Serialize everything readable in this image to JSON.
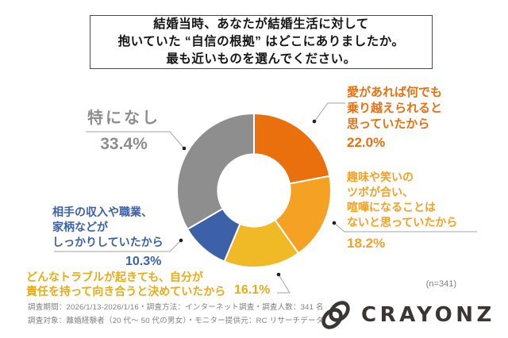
{
  "title": "結婚当時、あなたが結婚生活に対して\n抱いていた “自信の根拠” はどこにありましたか。\n最も近いものを選んでください。",
  "chart_data": {
    "type": "pie",
    "style": "donut",
    "direction": "clockwise",
    "start_angle_deg": 0,
    "inner_radius_ratio": 0.47,
    "unit": "%",
    "n": 341,
    "segments": [
      {
        "key": "love",
        "label": "愛があれば何でも乗り越えられると思っていたから",
        "value": 22.0,
        "color": "#ea700e"
      },
      {
        "key": "humor",
        "label": "趣味や笑いのツボが合い、喧嘩になることはないと思っていたから",
        "value": 18.2,
        "color": "#f4a124"
      },
      {
        "key": "responsibility",
        "label": "どんなトラブルが起きても、自分が責任を持って向き合うと決めていたから",
        "value": 16.1,
        "color": "#efba26"
      },
      {
        "key": "income",
        "label": "相手の収入や職業、家柄などがしっかりしていたから",
        "value": 10.3,
        "color": "#3c61a8"
      },
      {
        "key": "none",
        "label": "特になし",
        "value": 33.4,
        "color": "#8e8e8e"
      }
    ]
  },
  "labels": {
    "none": {
      "text": "特になし",
      "pct": "33.4%"
    },
    "love": {
      "text": "愛があれば何でも\n乗り越えられると\n思っていたから",
      "pct": "22.0%"
    },
    "humor": {
      "text": "趣味や笑いの\nツボが合い、\n喧嘩になることは\nないと思っていたから",
      "pct": "18.2%"
    },
    "income": {
      "text": "相手の収入や職業、\n家柄などが\nしっかりしていたから",
      "pct": "10.3%"
    },
    "responsibility": {
      "text": "どんなトラブルが起きても、自分が\n責任を持って向き合うと決めていたから",
      "pct": "16.1%"
    }
  },
  "footer": {
    "n_label": "(n=341)",
    "line1": "調査期間：2026/1/13-2026/1/16・調査方法：インターネット調査・調査人数：341 名",
    "line2": "調査対象：離婚経験者（20 代～ 50 代の男女）・モニター提供元：RC リサーチデータ",
    "brand": "CRAYONZ"
  },
  "colors": {
    "leader_line": "#a3a3a3",
    "dot": "#1f1f1f",
    "title_border": "#4a4a4a",
    "logo": "#3b3633"
  }
}
